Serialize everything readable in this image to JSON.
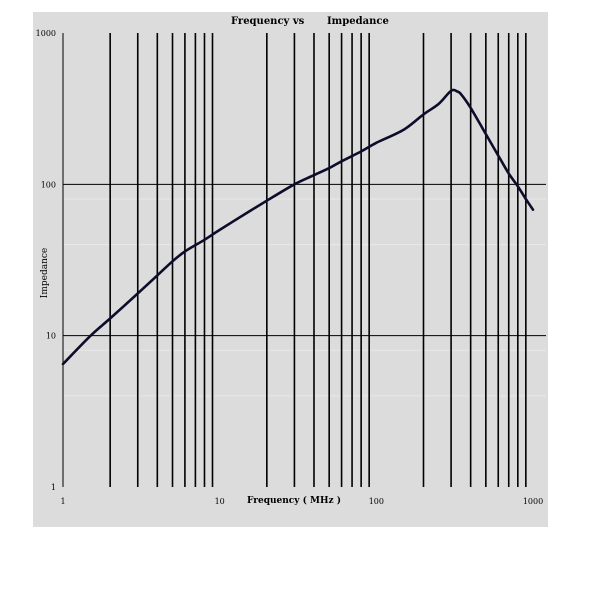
{
  "chart_data": {
    "type": "line",
    "title_left": "Frequency  vs",
    "title_right": "Impedance",
    "xlabel": "Frequency ( MHz )",
    "ylabel": "Impedance",
    "x_scale": "log",
    "y_scale": "log",
    "xlim": [
      1,
      1000
    ],
    "ylim": [
      1,
      1000
    ],
    "x_ticks": [
      {
        "value": 1,
        "label": "1"
      },
      {
        "value": 10,
        "label": "10"
      },
      {
        "value": 100,
        "label": "100"
      },
      {
        "value": 1000,
        "label": "1000"
      }
    ],
    "y_ticks": [
      {
        "value": 1,
        "label": "1"
      },
      {
        "value": 10,
        "label": "10"
      },
      {
        "value": 100,
        "label": "100"
      },
      {
        "value": 1000,
        "label": "1000"
      }
    ],
    "x_gridlines": [
      2,
      3,
      4,
      5,
      6,
      7,
      8,
      9,
      20,
      30,
      40,
      50,
      60,
      70,
      80,
      90,
      200,
      300,
      400,
      500,
      600,
      700,
      800,
      900
    ],
    "y_gridlines": [
      10,
      100
    ],
    "grid": true,
    "legend": "none",
    "series": [
      {
        "color": "#0d0d2b",
        "x": [
          1,
          1.5,
          2,
          3,
          4,
          5,
          6,
          8,
          10,
          15,
          20,
          30,
          40,
          50,
          60,
          80,
          100,
          150,
          200,
          250,
          300,
          330,
          350,
          400,
          500,
          600,
          700,
          800,
          900,
          1000
        ],
        "y": [
          6.5,
          10,
          13,
          19,
          25,
          31,
          36,
          43,
          50,
          65,
          78,
          100,
          115,
          128,
          142,
          165,
          188,
          230,
          290,
          340,
          415,
          410,
          390,
          320,
          215,
          155,
          118,
          97,
          80,
          68
        ]
      }
    ]
  }
}
